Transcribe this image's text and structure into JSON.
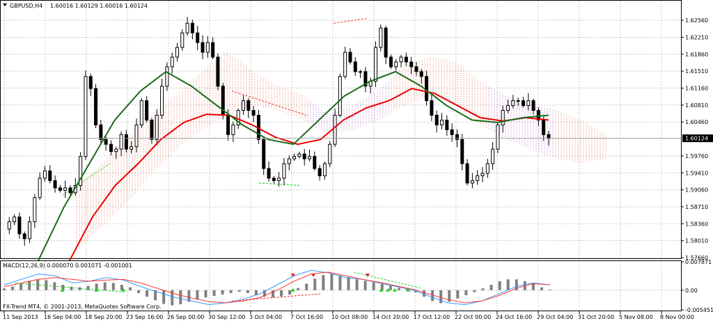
{
  "chart_data": [
    {
      "type": "candlestick",
      "title": "GBPUSD,H4",
      "ohlc_label": "1.60016 1.60129 1.60016 1.60124",
      "last_price": "1.60124",
      "ylim": [
        1.5766,
        1.6295
      ],
      "grid": true,
      "y_ticks": [
        "1.62560",
        "1.62210",
        "1.61860",
        "1.61510",
        "1.61160",
        "1.60810",
        "1.60460",
        "1.59760",
        "1.59410",
        "1.59060",
        "1.58710",
        "1.58360",
        "1.58010",
        "1.57660"
      ],
      "x_ticks": [
        "11 Sep 2013",
        "16 Sep 04:00",
        "18 Sep 20:00",
        "23 Sep 16:00",
        "26 Sep 00:00",
        "30 Sep 12:00",
        "3 Oct 04:00",
        "7 Oct 16:00",
        "10 Oct 08:00",
        "14 Oct 20:00",
        "17 Oct 12:00",
        "22 Oct 00:00",
        "24 Oct 16:00",
        "29 Oct 04:00",
        "31 Oct 20:00",
        "5 Nov 08:00",
        "8 Nov 00:00"
      ],
      "close_path": [
        1.5825,
        1.584,
        1.585,
        1.5815,
        1.5805,
        1.584,
        1.589,
        1.593,
        1.5945,
        1.5925,
        1.591,
        1.5905,
        1.591,
        1.59,
        1.5915,
        1.5975,
        1.614,
        1.6115,
        1.604,
        1.601,
        1.6,
        1.5985,
        1.599,
        1.602,
        1.599,
        1.5995,
        1.604,
        1.609,
        1.605,
        1.601,
        1.606,
        1.612,
        1.616,
        1.618,
        1.62,
        1.623,
        1.625,
        1.623,
        1.621,
        1.619,
        1.621,
        1.618,
        1.612,
        1.606,
        1.602,
        1.604,
        1.607,
        1.609,
        1.607,
        1.606,
        1.601,
        1.595,
        1.593,
        1.5925,
        1.593,
        1.596,
        1.597,
        1.5975,
        1.598,
        1.597,
        1.5975,
        1.595,
        1.5935,
        1.596,
        1.6,
        1.606,
        1.614,
        1.619,
        1.617,
        1.615,
        1.615,
        1.612,
        1.613,
        1.62,
        1.624,
        1.618,
        1.616,
        1.617,
        1.618,
        1.617,
        1.616,
        1.615,
        1.614,
        1.609,
        1.606,
        1.604,
        1.605,
        1.603,
        1.602,
        1.601,
        1.596,
        1.592,
        1.5925,
        1.5935,
        1.594,
        1.596,
        1.599,
        1.604,
        1.607,
        1.608,
        1.609,
        1.609,
        1.608,
        1.609,
        1.607,
        1.605,
        1.602,
        1.6012
      ],
      "ema_slow_red": [
        1.576,
        1.585,
        1.5915,
        1.596,
        1.601,
        1.6045,
        1.6062,
        1.606,
        1.604,
        1.6015,
        1.6,
        1.601,
        1.605,
        1.6075,
        1.609,
        1.6115,
        1.6105,
        1.608,
        1.6055,
        1.6048,
        1.6055,
        1.605
      ],
      "ema_fast_green": [
        1.576,
        1.587,
        1.596,
        1.605,
        1.611,
        1.615,
        1.612,
        1.608,
        1.604,
        1.601,
        1.6,
        1.605,
        1.61,
        1.613,
        1.615,
        1.612,
        1.608,
        1.605,
        1.6045,
        1.6055,
        1.606
      ],
      "cloud_upper": [
        1.591,
        1.596,
        1.601,
        1.606,
        1.6105,
        1.615,
        1.619,
        1.615,
        1.612,
        1.61,
        1.606,
        1.608,
        1.611,
        1.616,
        1.618,
        1.617,
        1.613,
        1.61,
        1.608,
        1.607,
        1.605,
        1.602
      ],
      "cloud_lower": [
        1.578,
        1.583,
        1.588,
        1.594,
        1.599,
        1.603,
        1.606,
        1.608,
        1.607,
        1.605,
        1.602,
        1.603,
        1.605,
        1.608,
        1.61,
        1.608,
        1.604,
        1.601,
        1.599,
        1.597,
        1.596,
        1.597
      ],
      "signal_lines": [
        {
          "from": [
            0.09,
            1.5895
          ],
          "to": [
            0.16,
            1.596
          ],
          "color": "#44dd44"
        },
        {
          "from": [
            0.38,
            1.592
          ],
          "to": [
            0.44,
            1.5915
          ],
          "color": "#00cc00"
        },
        {
          "from": [
            0.49,
            1.625
          ],
          "to": [
            0.54,
            1.626
          ],
          "color": "#ee3333"
        },
        {
          "from": [
            0.34,
            1.611
          ],
          "to": [
            0.45,
            1.606
          ],
          "color": "#ee3333"
        }
      ]
    },
    {
      "type": "macd",
      "label": "MACD(12,26,9) 0.000070 0.001071 -0.001001",
      "ylim": [
        -0.00545,
        0.00787
      ],
      "y_ticks": [
        "0.007871",
        "0.00",
        "-0.005451"
      ],
      "histogram": [
        0.5,
        1.0,
        1.8,
        2.6,
        3.0,
        2.8,
        2.2,
        1.5,
        1.0,
        0.8,
        1.2,
        1.8,
        2.2,
        2.0,
        1.5,
        0.8,
        -0.8,
        -1.8,
        -2.8,
        -3.8,
        -4.2,
        -3.9,
        -3.2,
        -2.6,
        -2.0,
        -1.6,
        -1.2,
        -0.8,
        -0.4,
        -0.8,
        -1.4,
        -1.8,
        -2.0,
        -1.7,
        -1.2,
        0.6,
        1.8,
        3.2,
        4.2,
        4.5,
        4.1,
        3.6,
        3.0,
        2.6,
        2.2,
        1.7,
        1.2,
        0.6,
        0.3,
        -0.6,
        -1.8,
        -3.0,
        -3.6,
        -3.2,
        -2.3,
        -1.4,
        -0.5,
        0.5,
        1.5,
        2.5,
        3.0,
        3.0,
        2.5,
        1.7,
        0.8,
        0.2
      ],
      "macd_blue": [
        0.0015,
        0.003,
        0.0045,
        0.004,
        0.002,
        0.0025,
        0.0035,
        0.0028,
        0.001,
        -0.0005,
        -0.002,
        -0.003,
        -0.004,
        -0.0035,
        -0.0025,
        -0.001,
        0.0015,
        0.004,
        0.0055,
        0.0048,
        0.0035,
        0.003,
        0.002,
        0.001,
        0.0,
        -0.0018,
        -0.0035,
        -0.004,
        -0.003,
        -0.001,
        0.001,
        0.002,
        0.0015
      ],
      "signal_red": [
        0.001,
        0.002,
        0.003,
        0.0035,
        0.003,
        0.0025,
        0.0028,
        0.003,
        0.002,
        0.0005,
        -0.001,
        -0.0022,
        -0.0032,
        -0.0035,
        -0.003,
        -0.002,
        0.0,
        0.0025,
        0.0045,
        0.005,
        0.004,
        0.003,
        0.0022,
        0.0012,
        0.0002,
        -0.0012,
        -0.0026,
        -0.0035,
        -0.003,
        -0.0015,
        0.0005,
        0.0018,
        0.0015
      ],
      "arrows_up": [
        0.09,
        0.14,
        0.18,
        0.43,
        0.56,
        0.57,
        0.58,
        0.6
      ],
      "arrows_down": [
        0.43,
        0.46,
        0.54
      ]
    }
  ],
  "copyright": "FX-Trend MT4, © 2001-2013, MetaQuotes Software Corp.",
  "colors": {
    "bull": "#000000",
    "bear": "#000000",
    "ema_red": "#e80000",
    "ema_green": "#1a6b1a",
    "cloud_bull": "#f08060",
    "cloud_bear": "#c070d0",
    "macd_blue": "#3399ff",
    "macd_red": "#ff3333",
    "arrow_up": "#22cc22",
    "arrow_down": "#ee2222"
  }
}
